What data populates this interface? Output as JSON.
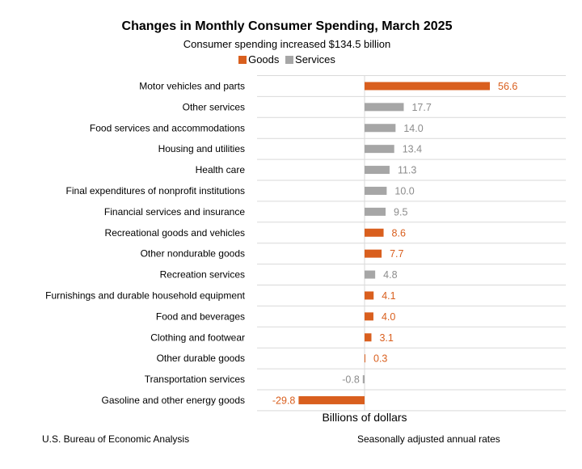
{
  "chart_data": {
    "type": "bar",
    "orientation": "horizontal",
    "title": "Changes in Monthly Consumer Spending, March 2025",
    "subtitle": "Consumer spending increased $134.5 billion",
    "xlabel": "Billions of dollars",
    "ylabel": "",
    "legend": [
      {
        "name": "Goods",
        "color": "#d95f1e"
      },
      {
        "name": "Services",
        "color": "#a6a6a6"
      }
    ],
    "legend_position": "top-center",
    "xlim": [
      -30,
      60
    ],
    "grid": "horizontal",
    "categories": [
      "Motor vehicles and parts",
      "Other services",
      "Food services and accommodations",
      "Housing and utilities",
      "Health care",
      "Final expenditures of nonprofit institutions",
      "Financial services and insurance",
      "Recreational goods and vehicles",
      "Other nondurable goods",
      "Recreation services",
      "Furnishings and durable household equipment",
      "Food and beverages",
      "Clothing and footwear",
      "Other durable goods",
      "Transportation services",
      "Gasoline and other energy goods"
    ],
    "values": [
      56.6,
      17.7,
      14.0,
      13.4,
      11.3,
      10.0,
      9.5,
      8.6,
      7.7,
      4.8,
      4.1,
      4.0,
      3.1,
      0.3,
      -0.8,
      -29.8
    ],
    "value_labels": [
      "56.6",
      "17.7",
      "14.0",
      "13.4",
      "11.3",
      "10.0",
      "9.5",
      "8.6",
      "7.7",
      "4.8",
      "4.1",
      "4.0",
      "3.1",
      "0.3",
      "-0.8",
      "-29.8"
    ],
    "series_membership": [
      "Goods",
      "Services",
      "Services",
      "Services",
      "Services",
      "Services",
      "Services",
      "Goods",
      "Goods",
      "Services",
      "Goods",
      "Goods",
      "Goods",
      "Goods",
      "Services",
      "Goods"
    ]
  },
  "colors": {
    "goods": "#d95f1e",
    "services": "#a6a6a6",
    "grid": "#d9d9d9",
    "label_text_services": "#8c8c8c"
  },
  "footer": {
    "source": "U.S. Bureau of Economic Analysis",
    "note": "Seasonally adjusted annual rates"
  }
}
